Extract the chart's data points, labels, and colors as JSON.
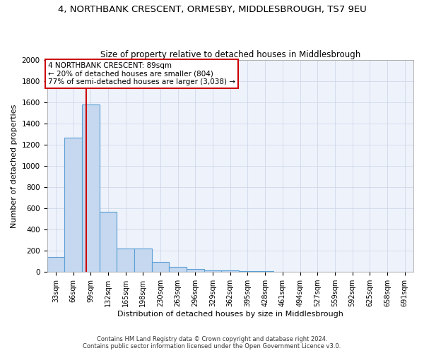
{
  "title": "4, NORTHBANK CRESCENT, ORMESBY, MIDDLESBROUGH, TS7 9EU",
  "subtitle": "Size of property relative to detached houses in Middlesbrough",
  "xlabel": "Distribution of detached houses by size in Middlesbrough",
  "ylabel": "Number of detached properties",
  "footer_line1": "Contains HM Land Registry data © Crown copyright and database right 2024.",
  "footer_line2": "Contains public sector information licensed under the Open Government Licence v3.0.",
  "bar_labels": [
    "33sqm",
    "66sqm",
    "99sqm",
    "132sqm",
    "165sqm",
    "198sqm",
    "230sqm",
    "263sqm",
    "296sqm",
    "329sqm",
    "362sqm",
    "395sqm",
    "428sqm",
    "461sqm",
    "494sqm",
    "527sqm",
    "559sqm",
    "592sqm",
    "625sqm",
    "658sqm",
    "691sqm"
  ],
  "bar_values": [
    140,
    1265,
    1580,
    565,
    220,
    220,
    95,
    50,
    25,
    15,
    15,
    5,
    5,
    0,
    0,
    0,
    0,
    0,
    0,
    0,
    0
  ],
  "bar_color": "#c5d8f0",
  "bar_edge_color": "#5a9fd4",
  "ylim": [
    0,
    2000
  ],
  "yticks": [
    0,
    200,
    400,
    600,
    800,
    1000,
    1200,
    1400,
    1600,
    1800,
    2000
  ],
  "vline_x_data": 1.75,
  "annotation_text_line1": "4 NORTHBANK CRESCENT: 89sqm",
  "annotation_text_line2": "← 20% of detached houses are smaller (804)",
  "annotation_text_line3": "77% of semi-detached houses are larger (3,038) →",
  "annotation_box_color": "#cc0000",
  "vline_color": "#cc0000",
  "grid_color": "#d0d8e8",
  "background_color": "#eef2fb",
  "title_fontsize": 9.5,
  "subtitle_fontsize": 8.5,
  "tick_fontsize": 7,
  "ylabel_fontsize": 8,
  "xlabel_fontsize": 8,
  "annotation_fontsize": 7.5
}
